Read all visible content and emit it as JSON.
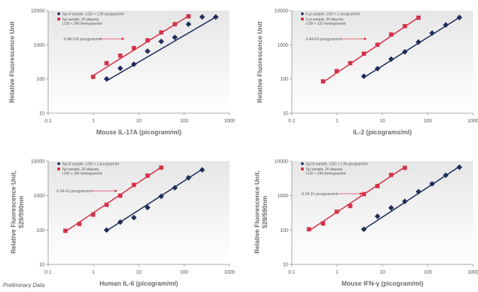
{
  "footnote": "Preliminary Data",
  "colors": {
    "sample": "#1f2d5a",
    "aliquot": "#d4324a",
    "arrow": "#d4324a",
    "panel_bg_top": "#e7e7e7",
    "panel_bg_bottom": "#ffffff"
  },
  "chart_data": [
    {
      "type": "scatter",
      "xscale": "log",
      "yscale": "log",
      "xlim": [
        0.1,
        1000
      ],
      "ylim": [
        10,
        10000
      ],
      "xticks": [
        "0.1",
        "1",
        "10",
        "100",
        "1000"
      ],
      "yticks": [
        "10",
        "100",
        "1000",
        "10000"
      ],
      "xlabel": "Mouse IL-17A (picogram/ml)",
      "ylabel": [
        "Relative Fluorescence Unit"
      ],
      "annotation": "0.98-125 picogram/ml",
      "series": [
        {
          "name": "5µl of sample, LOD < 1.95 picogram/ml",
          "marker": "diamond",
          "x": [
            1.95,
            3.9,
            7.8,
            15.6,
            31.25,
            62.5,
            125,
            250,
            500
          ],
          "y": [
            100,
            205,
            270,
            650,
            1250,
            1650,
            4000,
            6500,
            6500
          ],
          "fit": {
            "x": [
              1.95,
              500
            ],
            "y": [
              88,
              6500
            ]
          }
        },
        {
          "name": "5µl sample, 20 aliquots, LOD < 245 femtogram/ml",
          "marker": "square",
          "x": [
            0.98,
            1.95,
            3.9,
            7.8,
            15.6,
            31.25,
            62.5,
            125
          ],
          "y": [
            115,
            290,
            480,
            800,
            1350,
            2300,
            4000,
            6800
          ],
          "fit": {
            "x": [
              0.98,
              125
            ],
            "y": [
              125,
              7000
            ]
          }
        }
      ]
    },
    {
      "type": "scatter",
      "xscale": "log",
      "yscale": "log",
      "xlim": [
        0.1,
        1000
      ],
      "ylim": [
        10,
        10000
      ],
      "xticks": [
        "0.1",
        "1",
        "10",
        "100",
        "1000"
      ],
      "yticks": [
        "10",
        "100",
        "1000",
        "10000"
      ],
      "xlabel": "IL-2 (picograms/ml)",
      "ylabel": [
        "Relative Fluorescence Unit"
      ],
      "annotation": "0.49-63 picogram/ml",
      "series": [
        {
          "name": "5 µl sample, LOD < 1 picogram/ml",
          "marker": "diamond",
          "x": [
            3.9,
            7.8,
            15.6,
            31.25,
            62.5,
            125,
            250,
            500
          ],
          "y": [
            120,
            200,
            380,
            620,
            1200,
            2200,
            3800,
            6300
          ],
          "fit": {
            "x": [
              3.9,
              500
            ],
            "y": [
              110,
              6300
            ]
          }
        },
        {
          "name": "5 µl sample, 20 aliquots, LOD < 122 femtogram/ml",
          "marker": "square",
          "x": [
            0.49,
            0.98,
            1.95,
            3.9,
            7.8,
            15.6,
            31.25,
            62.5
          ],
          "y": [
            85,
            170,
            290,
            550,
            1000,
            2000,
            3500,
            6200
          ],
          "fit": {
            "x": [
              0.49,
              62.5
            ],
            "y": [
              80,
              6300
            ]
          }
        }
      ]
    },
    {
      "type": "scatter",
      "xscale": "log",
      "yscale": "log",
      "xlim": [
        0.1,
        1000
      ],
      "ylim": [
        10,
        10000
      ],
      "xticks": [
        "0.1",
        "1",
        "10",
        "100",
        "1000"
      ],
      "yticks": [
        "10",
        "100",
        "1000",
        "10000"
      ],
      "xlabel": "Human IL-6 (picogram/ml)",
      "ylabel": [
        "Relative Fluorescence Unit,",
        "529/590nm"
      ],
      "annotation": "0.24-31 picogram/ml",
      "series": [
        {
          "name": "5µl of sample, LOD < 1 picogram/ml",
          "marker": "diamond",
          "x": [
            1.95,
            3.9,
            7.8,
            15.6,
            31.25,
            62.5,
            125,
            250
          ],
          "y": [
            100,
            170,
            230,
            450,
            950,
            1700,
            3300,
            5600
          ],
          "fit": {
            "x": [
              1.95,
              250
            ],
            "y": [
              95,
              5800
            ]
          }
        },
        {
          "name": "5µl sample, 20 aliquots, LOD < 245 femtogram/ml",
          "marker": "square",
          "x": [
            0.24,
            0.49,
            0.98,
            1.95,
            3.9,
            7.8,
            15.6,
            31.25
          ],
          "y": [
            95,
            150,
            280,
            540,
            1000,
            2050,
            3800,
            6500
          ],
          "fit": {
            "x": [
              0.24,
              31.25
            ],
            "y": [
              90,
              6700
            ]
          }
        }
      ]
    },
    {
      "type": "scatter",
      "xscale": "log",
      "yscale": "log",
      "xlim": [
        0.1,
        1000
      ],
      "ylim": [
        10,
        10000
      ],
      "xticks": [
        "0.1",
        "1",
        "10",
        "100",
        "1000"
      ],
      "yticks": [
        "10",
        "100",
        "1000",
        "10000"
      ],
      "xlabel": "Mouse IFN-γ (picogram/ml)",
      "ylabel": [
        "Relative Fluorescence Unit,",
        "529/590nm"
      ],
      "annotation": "0.24-31 picogram/ml",
      "series": [
        {
          "name": "5µl of sample, LOD < 1.95 picogram/ml",
          "marker": "diamond",
          "x": [
            3.9,
            7.8,
            15.6,
            31.25,
            62.5,
            125,
            250,
            500
          ],
          "y": [
            105,
            250,
            440,
            680,
            1300,
            2200,
            3900,
            6700
          ],
          "fit": {
            "x": [
              3.9,
              500
            ],
            "y": [
              105,
              7000
            ]
          }
        },
        {
          "name": "5µl sample, 20 aliquots, LOD < 245 femtogram/ml",
          "marker": "square",
          "x": [
            0.24,
            0.49,
            0.98,
            1.95,
            3.9,
            7.8,
            15.6,
            31.25
          ],
          "y": [
            105,
            155,
            340,
            500,
            1100,
            1900,
            4000,
            6400
          ],
          "fit": {
            "x": [
              0.24,
              31.25
            ],
            "y": [
              95,
              6800
            ]
          }
        }
      ]
    }
  ]
}
